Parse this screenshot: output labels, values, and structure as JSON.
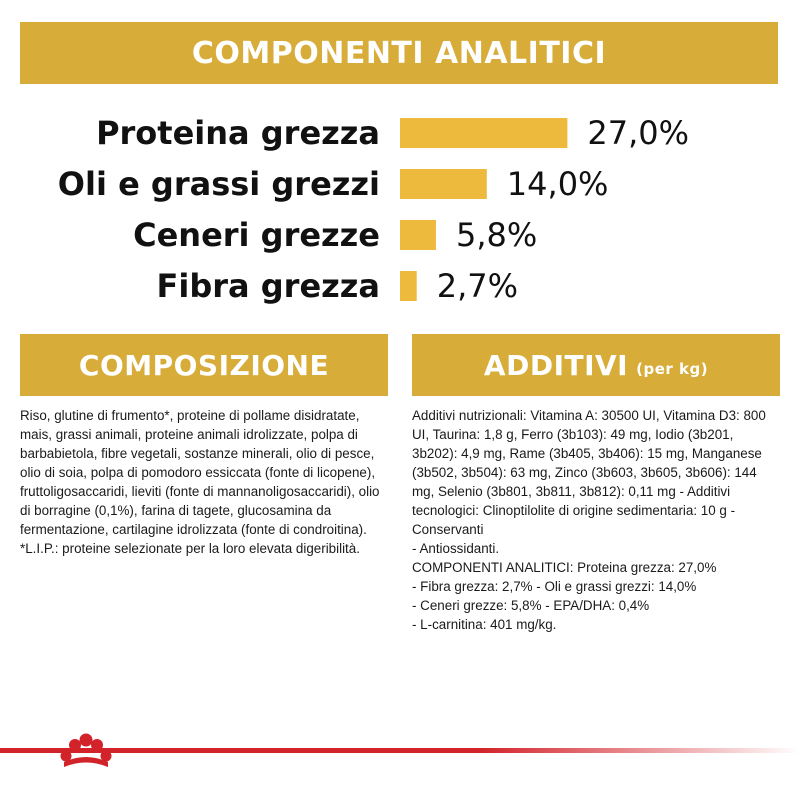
{
  "header": {
    "title": "COMPONENTI ANALITICI"
  },
  "chart_data": {
    "type": "bar",
    "orientation": "horizontal",
    "categories": [
      "Proteina grezza",
      "Oli e grassi grezzi",
      "Ceneri grezze",
      "Fibra grezza"
    ],
    "values": [
      27.0,
      14.0,
      5.8,
      2.7
    ],
    "value_labels": [
      "27,0%",
      "14,0%",
      "5,8%",
      "2,7%"
    ],
    "unit": "%",
    "grid": false,
    "legend": "none"
  },
  "composizione": {
    "title": "COMPOSIZIONE",
    "text": "Riso, glutine di frumento*, proteine di pollame disidratate, mais, grassi animali, proteine animali idrolizzate, polpa di barbabietola, fibre vegetali, sostanze minerali, olio di pesce, olio di soia, polpa di pomodoro essiccata (fonte di licopene), fruttoligosaccaridi, lieviti (fonte di mannanoligosaccaridi), olio di borragine (0,1%), farina di tagete, glucosamina da fermentazione, cartilagine idrolizzata (fonte di condroitina). *L.I.P.: proteine selezionate per la loro elevata digeribilità."
  },
  "additivi": {
    "title": "ADDITIVI",
    "subtitle": "(per kg)",
    "text": "Additivi nutrizionali: Vitamina A: 30500 UI, Vitamina D3: 800 UI, Taurina: 1,8 g, Ferro (3b103): 49 mg, Iodio (3b201, 3b202): 4,9 mg, Rame (3b405, 3b406): 15 mg, Manganese (3b502, 3b504): 63 mg, Zinco (3b603, 3b605, 3b606): 144 mg, Selenio (3b801, 3b811, 3b812): 0,11 mg - Additivi tecnologici: Clinoptilolite di origine sedimentaria: 10 g - Conservanti\n- Antiossidanti.\nCOMPONENTI ANALITICI: Proteina grezza: 27,0%\n- Fibra grezza: 2,7% - Oli e grassi grezzi: 14,0%\n- Ceneri grezze: 5,8% - EPA/DHA: 0,4%\n- L-carnitina: 401 mg/kg."
  },
  "colors": {
    "gold": "#D7AC39",
    "bar": "#EDBA3E",
    "brand_red": "#D2232A"
  },
  "icons": {
    "logo": "royal-canin-crown-icon"
  }
}
